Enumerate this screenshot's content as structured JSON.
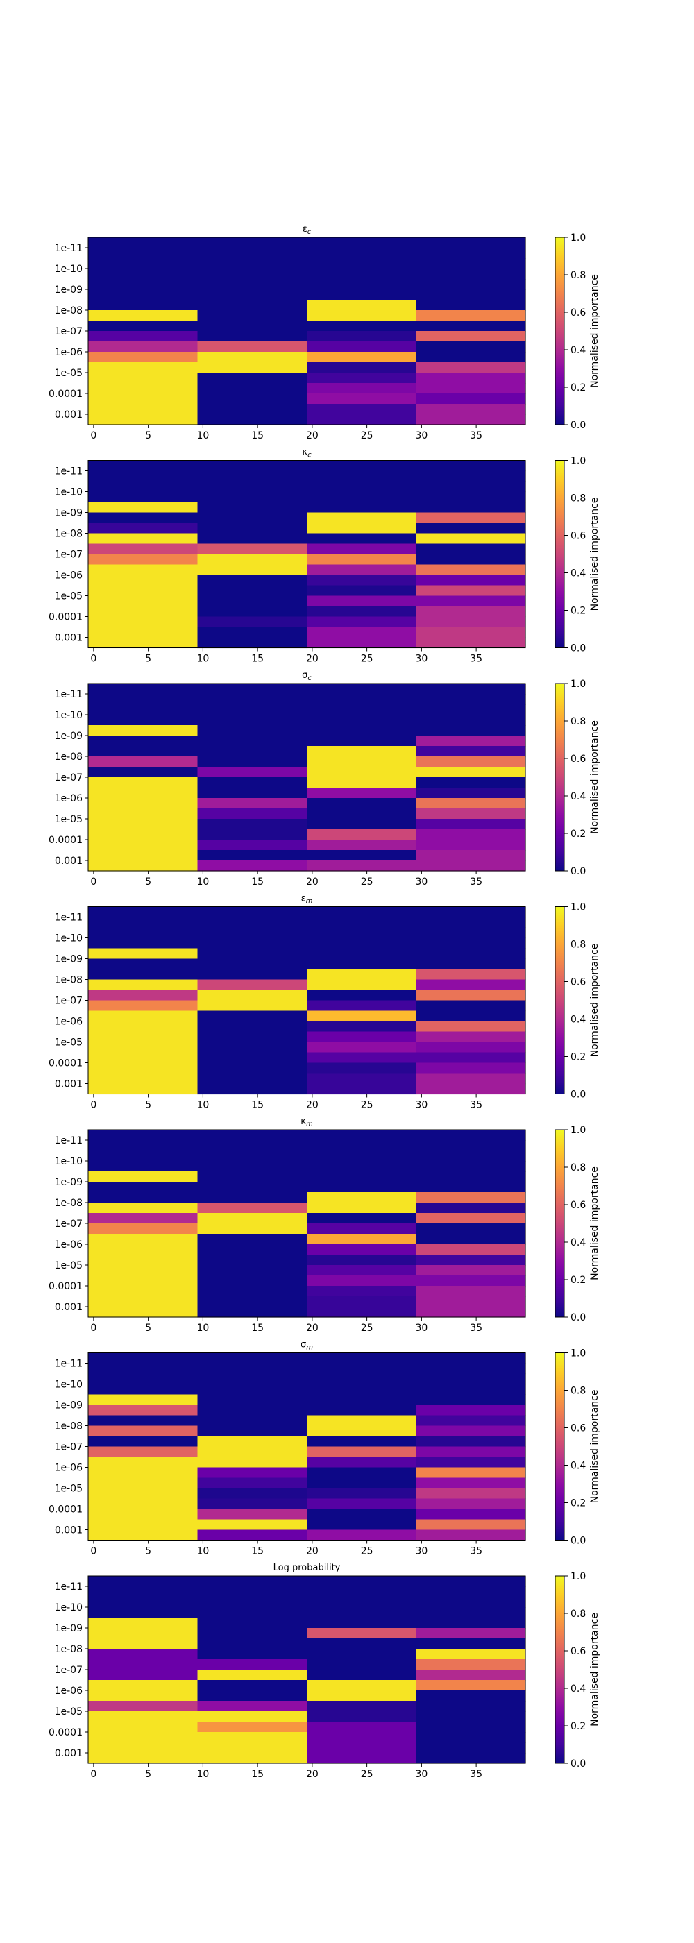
{
  "colorbar_label": "Normalised importance",
  "colorbar_ticks": [
    "0.0",
    "0.2",
    "0.4",
    "0.6",
    "0.8",
    "1.0"
  ],
  "colormap": [
    "#0d0887",
    "#41049d",
    "#6a00a8",
    "#8f0da4",
    "#b12a90",
    "#cc4778",
    "#e16462",
    "#f2844b",
    "#fca636",
    "#fcce25",
    "#f0f921"
  ],
  "chart_data": [
    {
      "type": "heatmap",
      "title": "ε_c",
      "x_ticks": [
        "0",
        "5",
        "10",
        "15",
        "20",
        "25",
        "30",
        "35"
      ],
      "y_ticks": [
        "1e-11",
        "1e-10",
        "1e-09",
        "1e-08",
        "1e-07",
        "1e-06",
        "1e-05",
        "0.0001",
        "0.001"
      ],
      "x_bins": [
        0,
        10,
        20,
        30,
        40
      ],
      "y_bins": 18,
      "zlim": [
        0,
        1
      ],
      "z": [
        [
          0,
          0,
          0,
          0,
          0,
          0,
          0,
          0.95,
          0,
          0.15,
          0.4,
          0.7,
          0.95,
          0.95,
          0.95,
          0.95,
          0.95,
          0.95
        ],
        [
          0,
          0,
          0,
          0,
          0,
          0,
          0,
          0,
          0,
          0,
          0.55,
          0.95,
          0.95,
          0,
          0,
          0,
          0,
          0
        ],
        [
          0,
          0,
          0,
          0,
          0,
          0,
          0.95,
          0.95,
          0,
          0.05,
          0.15,
          0.8,
          0.05,
          0.1,
          0.25,
          0.3,
          0.1,
          0.1
        ],
        [
          0,
          0,
          0,
          0,
          0,
          0,
          0,
          0.7,
          0,
          0.6,
          0,
          0,
          0.45,
          0.3,
          0.3,
          0.2,
          0.35,
          0.35
        ]
      ]
    },
    {
      "type": "heatmap",
      "title": "κ_c",
      "x_ticks": [
        "0",
        "5",
        "10",
        "15",
        "20",
        "25",
        "30",
        "35"
      ],
      "y_ticks": [
        "1e-11",
        "1e-10",
        "1e-09",
        "1e-08",
        "1e-07",
        "1e-06",
        "1e-05",
        "0.0001",
        "0.001"
      ],
      "x_bins": [
        0,
        10,
        20,
        30,
        40
      ],
      "y_bins": 18,
      "zlim": [
        0,
        1
      ],
      "z": [
        [
          0,
          0,
          0,
          0,
          0.95,
          0,
          0.08,
          0.95,
          0.5,
          0.7,
          0.95,
          0.95,
          0.95,
          0.95,
          0.95,
          0.95,
          0.95,
          0.95
        ],
        [
          0,
          0,
          0,
          0,
          0,
          0,
          0,
          0,
          0.55,
          0.95,
          0.95,
          0,
          0,
          0,
          0,
          0.05,
          0,
          0
        ],
        [
          0,
          0,
          0,
          0,
          0,
          0.95,
          0.95,
          0,
          0.25,
          0.7,
          0.35,
          0.08,
          0.03,
          0.25,
          0.05,
          0.15,
          0.3,
          0.3
        ],
        [
          0,
          0,
          0,
          0,
          0,
          0.6,
          0,
          0.95,
          0,
          0,
          0.65,
          0.2,
          0.5,
          0.25,
          0.4,
          0.4,
          0.45,
          0.45
        ]
      ]
    },
    {
      "type": "heatmap",
      "title": "σ_c",
      "x_ticks": [
        "0",
        "5",
        "10",
        "15",
        "20",
        "25",
        "30",
        "35"
      ],
      "y_ticks": [
        "1e-11",
        "1e-10",
        "1e-09",
        "1e-08",
        "1e-07",
        "1e-06",
        "1e-05",
        "0.0001",
        "0.001"
      ],
      "x_bins": [
        0,
        10,
        20,
        30,
        40
      ],
      "y_bins": 18,
      "zlim": [
        0,
        1
      ],
      "z": [
        [
          0,
          0,
          0,
          0,
          0.95,
          0,
          0,
          0.4,
          0,
          0.95,
          0.95,
          0.95,
          0.95,
          0.95,
          0.95,
          0.95,
          0.95,
          0.95
        ],
        [
          0,
          0,
          0,
          0,
          0,
          0,
          0,
          0,
          0.25,
          0,
          0,
          0.35,
          0.15,
          0.03,
          0.03,
          0.15,
          0,
          0.3
        ],
        [
          0,
          0,
          0,
          0,
          0,
          0,
          0.95,
          0.95,
          0.95,
          0.95,
          0.3,
          0,
          0,
          0,
          0.5,
          0.35,
          0,
          0.35
        ],
        [
          0,
          0,
          0,
          0,
          0,
          0.35,
          0.1,
          0.65,
          0.95,
          0,
          0.05,
          0.65,
          0.45,
          0.15,
          0.3,
          0.3,
          0.35,
          0.35
        ]
      ]
    },
    {
      "type": "heatmap",
      "title": "ε_m",
      "x_ticks": [
        "0",
        "5",
        "10",
        "15",
        "20",
        "25",
        "30",
        "35"
      ],
      "y_ticks": [
        "1e-11",
        "1e-10",
        "1e-09",
        "1e-08",
        "1e-07",
        "1e-06",
        "1e-05",
        "0.0001",
        "0.001"
      ],
      "x_bins": [
        0,
        10,
        20,
        30,
        40
      ],
      "y_bins": 18,
      "zlim": [
        0,
        1
      ],
      "z": [
        [
          0,
          0,
          0,
          0,
          0.95,
          0,
          0,
          0.95,
          0.45,
          0.7,
          0.95,
          0.95,
          0.95,
          0.95,
          0.95,
          0.95,
          0.95,
          0.95
        ],
        [
          0,
          0,
          0,
          0,
          0,
          0,
          0,
          0.5,
          0.95,
          0.95,
          0,
          0,
          0,
          0,
          0,
          0,
          0,
          0
        ],
        [
          0,
          0,
          0,
          0,
          0,
          0,
          0.95,
          0.95,
          0,
          0.1,
          0.85,
          0.05,
          0.2,
          0.3,
          0.15,
          0.05,
          0.08,
          0.08
        ],
        [
          0,
          0,
          0,
          0,
          0,
          0,
          0.55,
          0.3,
          0.65,
          0,
          0,
          0.6,
          0.35,
          0.25,
          0.15,
          0.25,
          0.35,
          0.35
        ]
      ]
    },
    {
      "type": "heatmap",
      "title": "κ_m",
      "x_ticks": [
        "0",
        "5",
        "10",
        "15",
        "20",
        "25",
        "30",
        "35"
      ],
      "y_ticks": [
        "1e-11",
        "1e-10",
        "1e-09",
        "1e-08",
        "1e-07",
        "1e-06",
        "1e-05",
        "0.0001",
        "0.001"
      ],
      "x_bins": [
        0,
        10,
        20,
        30,
        40
      ],
      "y_bins": 18,
      "zlim": [
        0,
        1
      ],
      "z": [
        [
          0,
          0,
          0,
          0,
          0.95,
          0,
          0,
          0.95,
          0.4,
          0.7,
          0.95,
          0.95,
          0.95,
          0.95,
          0.95,
          0.95,
          0.95,
          0.95
        ],
        [
          0,
          0,
          0,
          0,
          0,
          0,
          0,
          0.55,
          0.95,
          0.95,
          0,
          0,
          0,
          0,
          0,
          0,
          0,
          0
        ],
        [
          0,
          0,
          0,
          0,
          0,
          0,
          0.95,
          0.95,
          0,
          0.15,
          0.8,
          0.2,
          0.05,
          0.15,
          0.25,
          0.1,
          0.08,
          0.08
        ],
        [
          0,
          0,
          0,
          0,
          0,
          0,
          0.65,
          0.05,
          0.6,
          0,
          0,
          0.5,
          0.1,
          0.35,
          0.25,
          0.35,
          0.35,
          0.35
        ]
      ]
    },
    {
      "type": "heatmap",
      "title": "σ_m",
      "x_ticks": [
        "0",
        "5",
        "10",
        "15",
        "20",
        "25",
        "30",
        "35"
      ],
      "y_ticks": [
        "1e-11",
        "1e-10",
        "1e-09",
        "1e-08",
        "1e-07",
        "1e-06",
        "1e-05",
        "0.0001",
        "0.001"
      ],
      "x_bins": [
        0,
        10,
        20,
        30,
        40
      ],
      "y_bins": 18,
      "zlim": [
        0,
        1
      ],
      "z": [
        [
          0,
          0,
          0,
          0,
          0.95,
          0.55,
          0,
          0.6,
          0,
          0.6,
          0.95,
          0.95,
          0.95,
          0.95,
          0.95,
          0.95,
          0.95,
          0.95
        ],
        [
          0,
          0,
          0,
          0,
          0,
          0,
          0,
          0,
          0.95,
          0.95,
          0.95,
          0.2,
          0.1,
          0.03,
          0.05,
          0.4,
          0.95,
          0.2
        ],
        [
          0,
          0,
          0,
          0,
          0,
          0,
          0.95,
          0.95,
          0,
          0.6,
          0.15,
          0,
          0,
          0.05,
          0.15,
          0,
          0,
          0.3
        ],
        [
          0,
          0,
          0,
          0,
          0,
          0.2,
          0.1,
          0.25,
          0.05,
          0.25,
          0.1,
          0.7,
          0.3,
          0.45,
          0.35,
          0.2,
          0.65,
          0.35
        ]
      ]
    },
    {
      "type": "heatmap",
      "title": "Log probability",
      "x_ticks": [
        "0",
        "5",
        "10",
        "15",
        "20",
        "25",
        "30",
        "35"
      ],
      "y_ticks": [
        "1e-11",
        "1e-10",
        "1e-09",
        "1e-08",
        "1e-07",
        "1e-06",
        "1e-05",
        "0.0001",
        "0.001"
      ],
      "x_bins": [
        0,
        10,
        20,
        30,
        40
      ],
      "y_bins": 18,
      "zlim": [
        0,
        1
      ],
      "z": [
        [
          0,
          0,
          0,
          0,
          0.95,
          0.95,
          0.95,
          0.2,
          0.2,
          0.2,
          0.95,
          0.95,
          0.45,
          0.95,
          0.95,
          0.95,
          0.95,
          0.95
        ],
        [
          0,
          0,
          0,
          0,
          0,
          0,
          0,
          0,
          0.2,
          0.95,
          0,
          0,
          0.3,
          0.95,
          0.75,
          0.95,
          0.95,
          0.95
        ],
        [
          0,
          0,
          0,
          0,
          0,
          0.55,
          0,
          0,
          0,
          0,
          0.95,
          0.95,
          0.05,
          0.05,
          0.2,
          0.2,
          0.2,
          0.2
        ],
        [
          0,
          0,
          0,
          0,
          0,
          0.35,
          0,
          0.95,
          0.65,
          0.4,
          0.7,
          0,
          0,
          0,
          0,
          0,
          0,
          0
        ]
      ]
    }
  ]
}
